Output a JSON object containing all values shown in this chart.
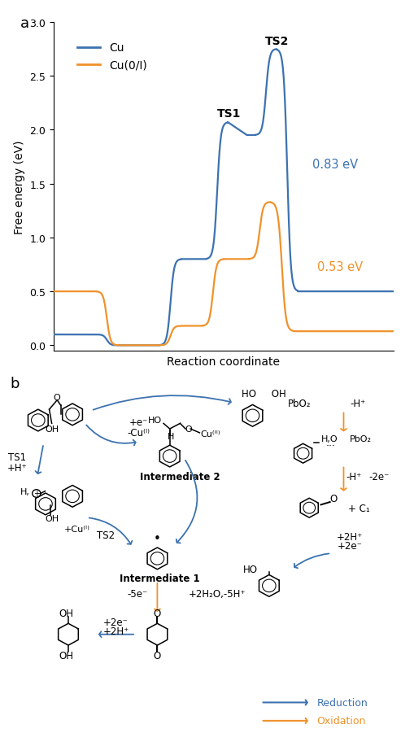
{
  "blue_color": "#3c72b0",
  "orange_color": "#f0922b",
  "ylabel_a": "Free energy (eV)",
  "xlabel_a": "Reaction coordinate",
  "ylim_a": [
    -0.05,
    3.0
  ],
  "yticks_a": [
    0.0,
    0.5,
    1.0,
    1.5,
    2.0,
    2.5,
    3.0
  ],
  "legend_cu": "Cu",
  "legend_cu0i": "Cu(0/I)",
  "ts1_label": "TS1",
  "ts2_label": "TS2",
  "blue_barrier_label": "0.83 eV",
  "orange_barrier_label": "0.53 eV"
}
